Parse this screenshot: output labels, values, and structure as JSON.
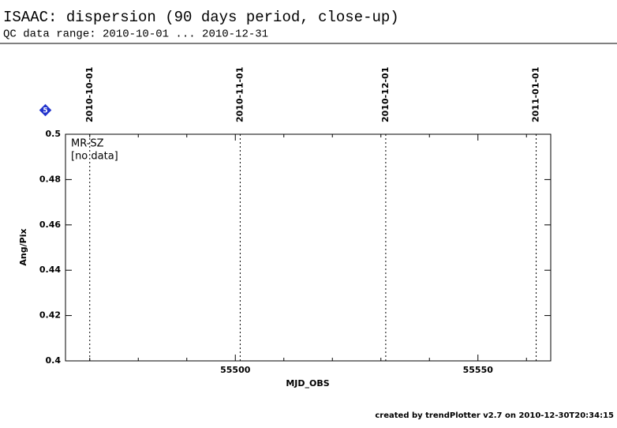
{
  "chart_data": {
    "type": "scatter",
    "title": "ISAAC: dispersion (90 days period, close-up)",
    "subtitle": "QC data range: 2010-10-01 ... 2010-12-31",
    "badge": "5",
    "xlabel": "MJD_OBS",
    "ylabel": "Ang/Pix",
    "series": [
      {
        "name": "MR-SZ",
        "x": [],
        "values": []
      }
    ],
    "annotation": "[no data]",
    "xlim": [
      55465,
      55565
    ],
    "xticks": [
      55500,
      55550
    ],
    "xminorticks": [
      55470,
      55480,
      55490,
      55510,
      55520,
      55530,
      55540,
      55560
    ],
    "ylim": [
      0.4,
      0.5
    ],
    "yticks": [
      0.4,
      0.42,
      0.44,
      0.46,
      0.48,
      0.5
    ],
    "date_markers": [
      {
        "x": 55470,
        "label": "2010-10-01"
      },
      {
        "x": 55501,
        "label": "2010-11-01"
      },
      {
        "x": 55531,
        "label": "2010-12-01"
      },
      {
        "x": 55562,
        "label": "2011-01-01"
      }
    ],
    "footer": "created by trendPlotter v2.7 on 2010-12-30T20:34:15"
  }
}
